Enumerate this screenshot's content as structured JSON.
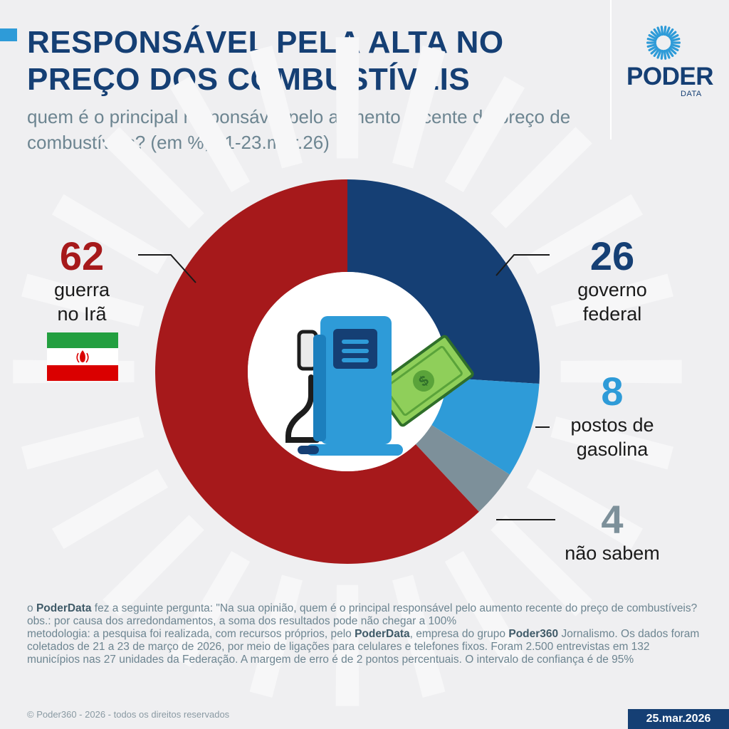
{
  "header": {
    "title": "RESPONSÁVEL PELA ALTA NO PREÇO DOS COMBUSTÍVEIS",
    "subtitle": "quem é o principal responsável pelo aumento recente do preço de combustíveis? (em %, 21-23.mar.26)"
  },
  "brand": {
    "name": "PODER",
    "sub": "DATA",
    "color": "#153f74",
    "accent": "#2e9bd8"
  },
  "chart_data": {
    "type": "pie",
    "donut": true,
    "categories": [
      "guerra no Irã",
      "governo federal",
      "postos de gasolina",
      "não sabem"
    ],
    "values": [
      62,
      26,
      8,
      4
    ],
    "colors": [
      "#a6191b",
      "#153f74",
      "#2e9bd8",
      "#7d909a"
    ],
    "slice_order_clockwise_from_top": [
      "governo federal",
      "postos de gasolina",
      "não sabem",
      "guerra no Irã"
    ],
    "center_icon": "fuel-pump-with-dollar-bill-icon",
    "flag_icon": "iran-flag-icon"
  },
  "labels": [
    {
      "value": "62",
      "text": "guerra\nno Irã",
      "color": "#a6191b"
    },
    {
      "value": "26",
      "text": "governo\nfederal",
      "color": "#153f74"
    },
    {
      "value": "8",
      "text": "postos de\ngasolina",
      "color": "#2e9bd8"
    },
    {
      "value": "4",
      "text": "não sabem",
      "color": "#7d909a"
    }
  ],
  "footer": {
    "q_brand": "PoderData",
    "q_text": " fez a seguinte pergunta: \"Na sua opinião, quem é o principal responsável pelo aumento recente do preço de combustíveis?",
    "q_prefix": "o ",
    "obs": "obs.: por causa dos arredondamentos, a soma dos resultados pode não chegar a 100%",
    "met_1": "metodologia: a pesquisa foi realizada, com recursos próprios, pelo ",
    "met_brand_1": "PoderData",
    "met_2": ", empresa do grupo ",
    "met_brand_2": "Poder360",
    "met_3": " Jornalismo. Os dados foram coletados de 21 a 23 de março de 2026, por meio de ligações para celulares e telefones fixos. Foram 2.500 entrevistas em 132 municípios nas 27 unidades da Federação. A margem de erro é de 2 pontos percentuais. O intervalo de confiança é de 95%",
    "copyright": "© Poder360 - 2026 - todos os direitos reservados",
    "date": "25.mar.2026"
  }
}
